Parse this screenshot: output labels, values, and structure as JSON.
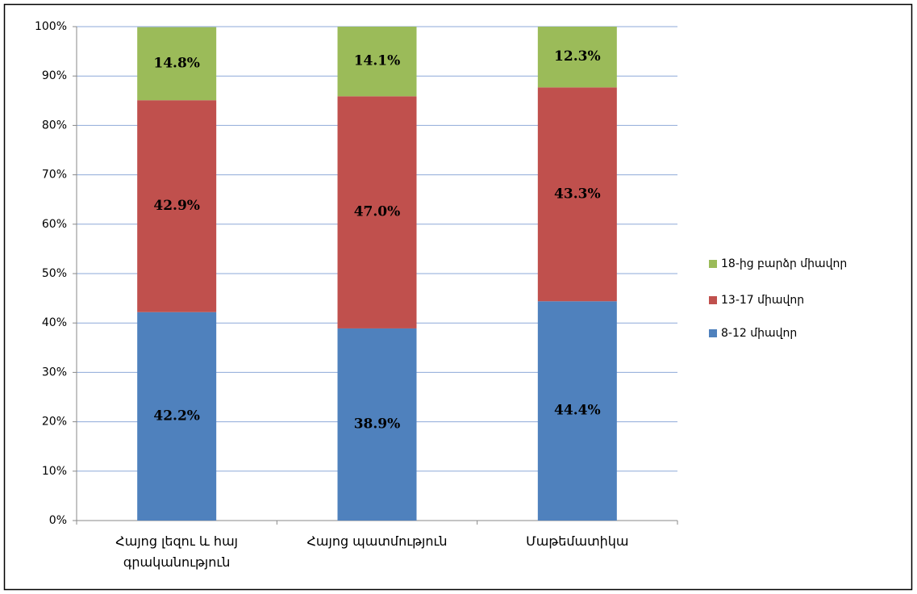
{
  "chart_data": {
    "type": "stacked_bar",
    "categories": [
      "Հայոց լեզու և հայ գրականություն",
      "Հայոց պատմություն",
      "Մաթեմատիկա"
    ],
    "series": [
      {
        "name": "8-12 միավոր",
        "color": "#4f81bd",
        "values": [
          42.2,
          38.9,
          44.4
        ],
        "value_labels": [
          "42.2%",
          "38.9%",
          "44.4%"
        ]
      },
      {
        "name": "13-17 միավոր",
        "color": "#c0504d",
        "values": [
          42.9,
          47.0,
          43.3
        ],
        "value_labels": [
          "42.9%",
          "47.0%",
          "43.3%"
        ]
      },
      {
        "name": "18-ից բարձր միավոր",
        "color": "#9bbb59",
        "values": [
          14.8,
          14.1,
          12.3
        ],
        "value_labels": [
          "14.8%",
          "14.1%",
          "12.3%"
        ]
      }
    ],
    "ylim": [
      0,
      100
    ],
    "yticks": [
      {
        "value": 0,
        "label": "0%"
      },
      {
        "value": 10,
        "label": "10%"
      },
      {
        "value": 20,
        "label": "20%"
      },
      {
        "value": 30,
        "label": "30%"
      },
      {
        "value": 40,
        "label": "40%"
      },
      {
        "value": 50,
        "label": "50%"
      },
      {
        "value": 60,
        "label": "60%"
      },
      {
        "value": 70,
        "label": "70%"
      },
      {
        "value": 80,
        "label": "80%"
      },
      {
        "value": 90,
        "label": "90%"
      },
      {
        "value": 100,
        "label": "100%"
      }
    ],
    "grid": true,
    "legend": "right"
  }
}
